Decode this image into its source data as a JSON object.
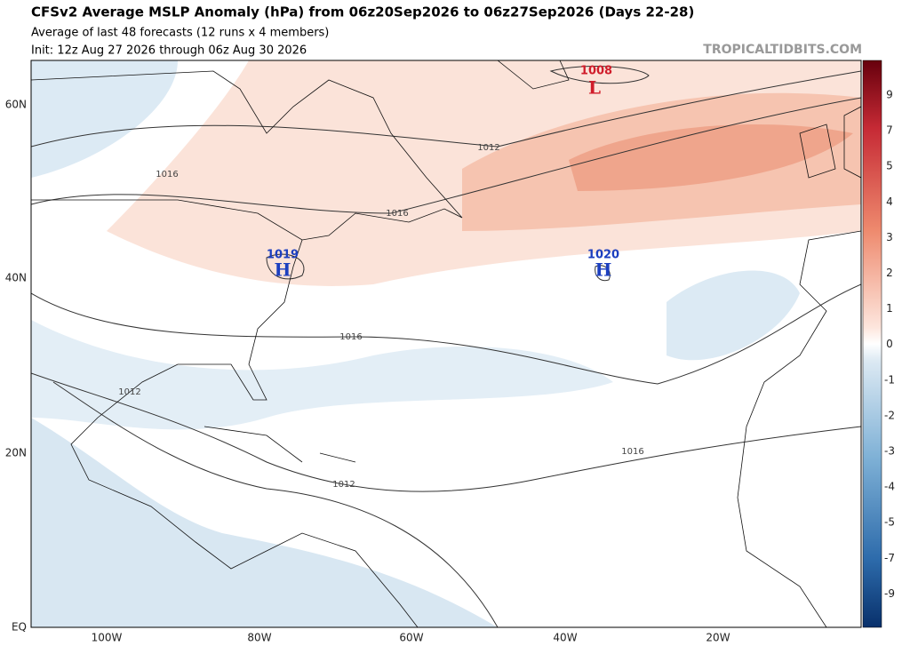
{
  "header": {
    "title": "CFSv2 Average MSLP Anomaly (hPa) from 06z20Sep2026 to 06z27Sep2026 (Days 22-28)",
    "subtitle": "Average of last 48 forecasts (12 runs x 4 members)",
    "init": "Init: 12z Aug 27 2026 through 06z Aug 30 2026",
    "watermark": "TROPICALTIDBITS.COM"
  },
  "map": {
    "lat_labels": [
      "60N",
      "40N",
      "20N",
      "EQ"
    ],
    "lon_labels": [
      "100W",
      "80W",
      "60W",
      "40W",
      "20W"
    ],
    "contour_labels": [
      "1012",
      "1016",
      "1016",
      "1016",
      "1012",
      "1016",
      "1012",
      "1008"
    ],
    "centers": [
      {
        "value": "1019",
        "letter": "H"
      },
      {
        "value": "1020",
        "letter": "H"
      },
      {
        "value": "1008",
        "letter": "L"
      }
    ]
  },
  "colorbar": {
    "labels": [
      "9",
      "7",
      "5",
      "4",
      "3",
      "2",
      "1",
      "0",
      "-1",
      "-2",
      "-3",
      "-4",
      "-5",
      "-7",
      "-9"
    ]
  }
}
